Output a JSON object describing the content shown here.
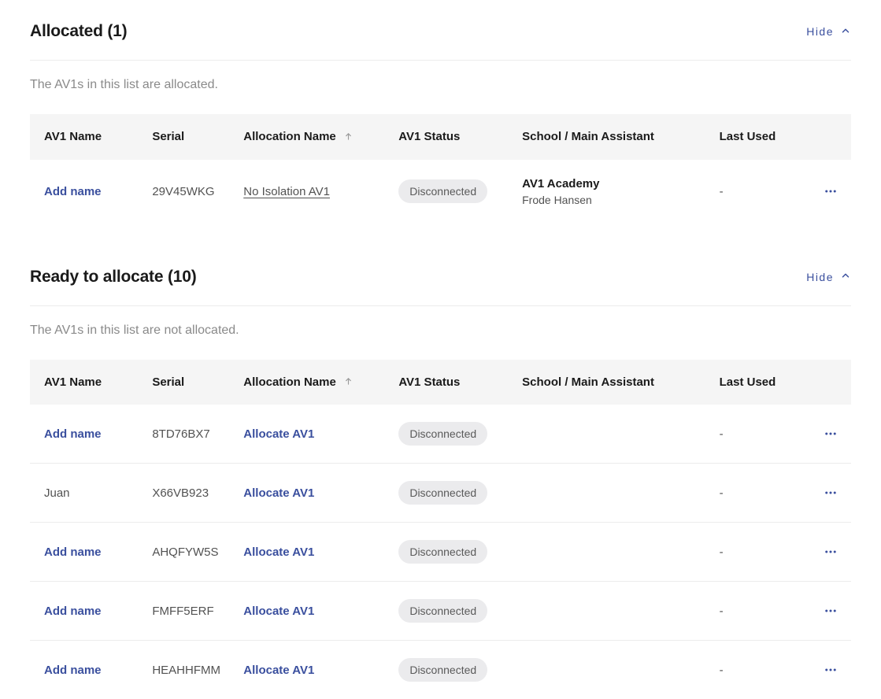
{
  "labels": {
    "hide": "Hide"
  },
  "columns": {
    "name": "AV1 Name",
    "serial": "Serial",
    "allocation": "Allocation Name",
    "status": "AV1 Status",
    "school": "School / Main Assistant",
    "lastUsed": "Last Used"
  },
  "sections": {
    "allocated": {
      "title": "Allocated (1)",
      "description": "The AV1s in this list are allocated.",
      "rows": [
        {
          "name": "Add name",
          "nameIsLink": true,
          "serial": "29V45WKG",
          "allocation": "No Isolation AV1",
          "allocationIsUnderline": true,
          "status": "Disconnected",
          "schoolPrimary": "AV1 Academy",
          "schoolSecondary": "Frode Hansen",
          "lastUsed": "-"
        }
      ]
    },
    "ready": {
      "title": "Ready to allocate (10)",
      "description": "The AV1s in this list are not allocated.",
      "rows": [
        {
          "name": "Add name",
          "nameIsLink": true,
          "serial": "8TD76BX7",
          "allocation": "Allocate AV1",
          "allocationIsUnderline": false,
          "status": "Disconnected",
          "schoolPrimary": "",
          "schoolSecondary": "",
          "lastUsed": "-"
        },
        {
          "name": "Juan",
          "nameIsLink": false,
          "serial": "X66VB923",
          "allocation": "Allocate AV1",
          "allocationIsUnderline": false,
          "status": "Disconnected",
          "schoolPrimary": "",
          "schoolSecondary": "",
          "lastUsed": "-"
        },
        {
          "name": "Add name",
          "nameIsLink": true,
          "serial": "AHQFYW5S",
          "allocation": "Allocate AV1",
          "allocationIsUnderline": false,
          "status": "Disconnected",
          "schoolPrimary": "",
          "schoolSecondary": "",
          "lastUsed": "-"
        },
        {
          "name": "Add name",
          "nameIsLink": true,
          "serial": "FMFF5ERF",
          "allocation": "Allocate AV1",
          "allocationIsUnderline": false,
          "status": "Disconnected",
          "schoolPrimary": "",
          "schoolSecondary": "",
          "lastUsed": "-"
        },
        {
          "name": "Add name",
          "nameIsLink": true,
          "serial": "HEAHHFMM",
          "allocation": "Allocate AV1",
          "allocationIsUnderline": false,
          "status": "Disconnected",
          "schoolPrimary": "",
          "schoolSecondary": "",
          "lastUsed": "-"
        }
      ]
    }
  },
  "colors": {
    "link": "#3a4f9e",
    "pillBg": "#ebebed",
    "headerBg": "#f5f5f5",
    "border": "#ececec"
  }
}
